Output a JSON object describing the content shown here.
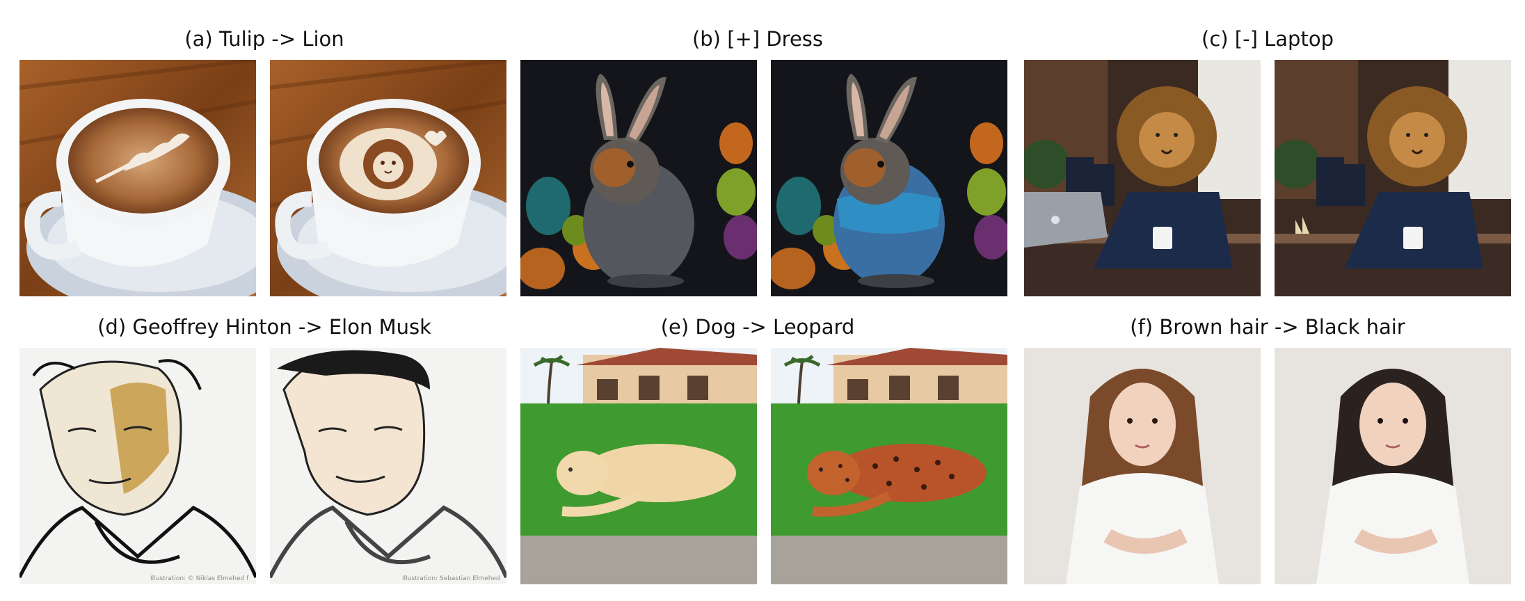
{
  "captions": {
    "a": "(a) Tulip -> Lion",
    "b": "(b) [+] Dress",
    "c": "(c) [-] Laptop",
    "d": "(d) Geoffrey Hinton -> Elon Musk",
    "e": "(e) Dog -> Leopard",
    "f": "(f) Brown hair -> Black hair"
  },
  "panels": {
    "a_before": "latte with tulip latte art",
    "a_after": "latte with lion face latte art",
    "b_before": "rabbit among easter eggs",
    "b_after": "rabbit wearing blue dress among easter eggs",
    "c_before": "lion in suit at cafe table with laptop",
    "c_after": "lion in suit at cafe table without laptop",
    "d_before": "line illustration portrait, older man",
    "d_after": "line illustration portrait, man with short hair",
    "e_before": "dog lying on lawn in front of house",
    "e_after": "leopard lying on lawn in front of house",
    "f_before": "woman with brown hair in white shirt",
    "f_after": "woman with black hair in white shirt"
  },
  "watermarks": {
    "d_before": "Illustration: © Niklas Elmehed f",
    "d_after": "Illustration: Sebastian Elmehed"
  },
  "colors": {
    "background": "#ffffff",
    "caption_text": "#111111"
  }
}
